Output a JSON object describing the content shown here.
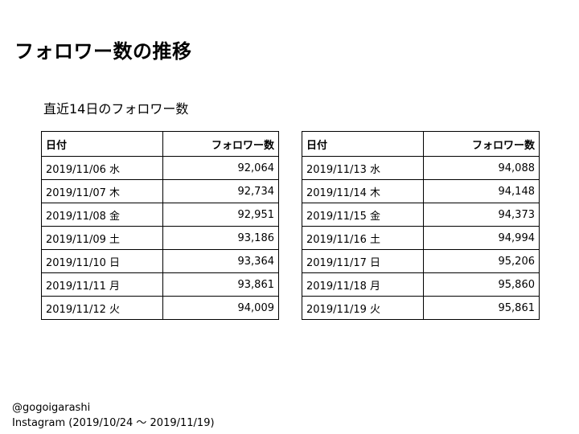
{
  "slide": {
    "title": "フォロワー数の推移",
    "subtitle": "直近14日のフォロワー数"
  },
  "table_left": {
    "header_date": "日付",
    "header_count": "フォロワー数",
    "rows": [
      {
        "date": "2019/11/06 水",
        "count": "92,064"
      },
      {
        "date": "2019/11/07 木",
        "count": "92,734"
      },
      {
        "date": "2019/11/08 金",
        "count": "92,951"
      },
      {
        "date": "2019/11/09 土",
        "count": "93,186"
      },
      {
        "date": "2019/11/10 日",
        "count": "93,364"
      },
      {
        "date": "2019/11/11 月",
        "count": "93,861"
      },
      {
        "date": "2019/11/12 火",
        "count": "94,009"
      }
    ]
  },
  "table_right": {
    "header_date": "日付",
    "header_count": "フォロワー数",
    "rows": [
      {
        "date": "2019/11/13 水",
        "count": "94,088"
      },
      {
        "date": "2019/11/14 木",
        "count": "94,148"
      },
      {
        "date": "2019/11/15 金",
        "count": "94,373"
      },
      {
        "date": "2019/11/16 土",
        "count": "94,994"
      },
      {
        "date": "2019/11/17 日",
        "count": "95,206"
      },
      {
        "date": "2019/11/18 月",
        "count": "95,860"
      },
      {
        "date": "2019/11/19 火",
        "count": "95,861"
      }
    ]
  },
  "footer": {
    "account": "@gogoigarashi",
    "source": "Instagram (2019/10/24 〜 2019/11/19)"
  }
}
